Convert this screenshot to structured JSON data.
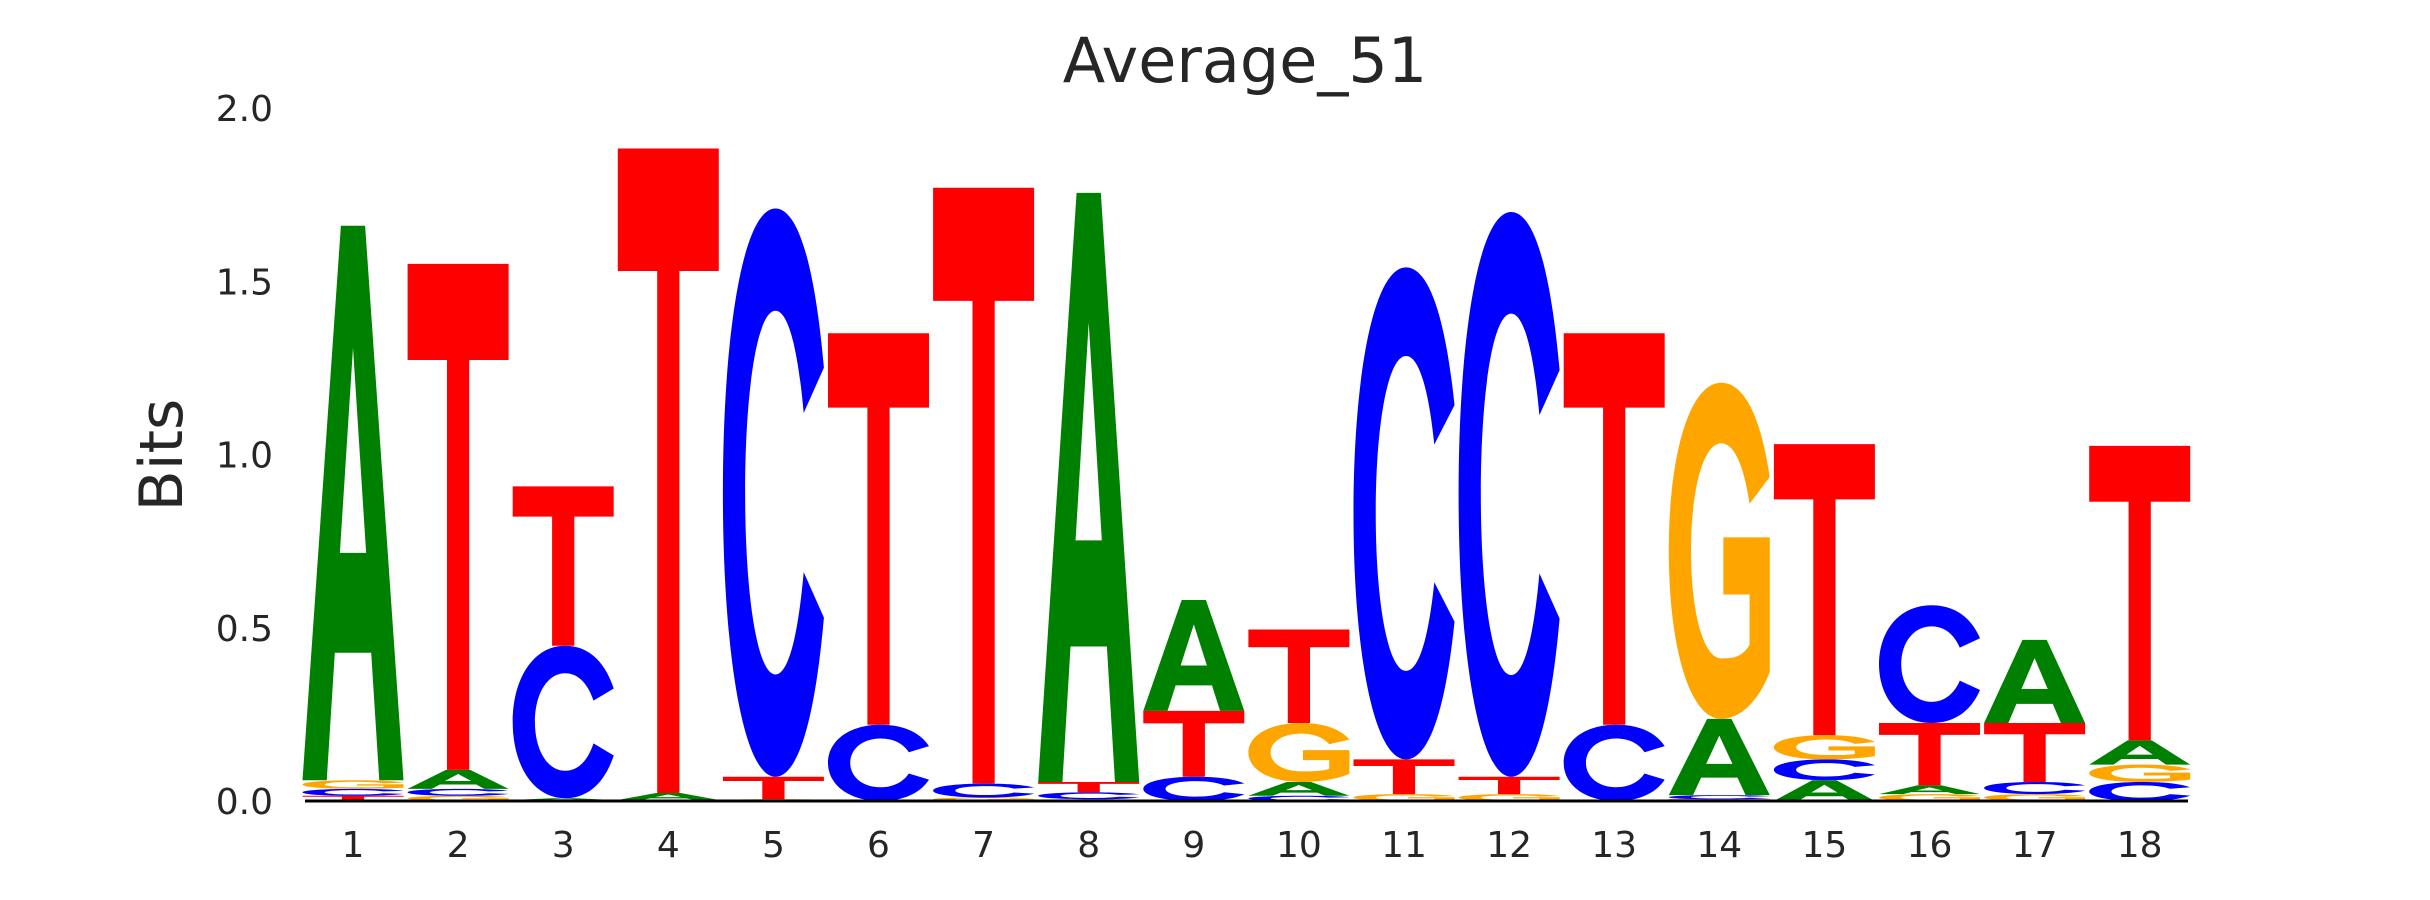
{
  "chart_data": {
    "type": "sequence-logo",
    "title": "Average_51",
    "xlabel": "",
    "ylabel": "Bits",
    "ylim": [
      0,
      2.0
    ],
    "yticks": [
      "0.0",
      "0.5",
      "1.0",
      "1.5",
      "2.0"
    ],
    "ytick_values": [
      0,
      0.5,
      1.0,
      1.5,
      2.0
    ],
    "xticks": [
      "1",
      "2",
      "3",
      "4",
      "5",
      "6",
      "7",
      "8",
      "9",
      "10",
      "11",
      "12",
      "13",
      "14",
      "15",
      "16",
      "17",
      "18"
    ],
    "grid": false,
    "colors": {
      "A": "#008000",
      "C": "#0000ff",
      "G": "#ffa500",
      "T": "#ff0000"
    },
    "columns": [
      [
        {
          "base": "T",
          "bits": 0.015
        },
        {
          "base": "C",
          "bits": 0.02
        },
        {
          "base": "G",
          "bits": 0.025
        },
        {
          "base": "A",
          "bits": 1.6
        }
      ],
      [
        {
          "base": "G",
          "bits": 0.015
        },
        {
          "base": "C",
          "bits": 0.02
        },
        {
          "base": "A",
          "bits": 0.055
        },
        {
          "base": "T",
          "bits": 1.46
        }
      ],
      [
        {
          "base": "G",
          "bits": 0.003
        },
        {
          "base": "A",
          "bits": 0.005
        },
        {
          "base": "C",
          "bits": 0.44
        },
        {
          "base": "T",
          "bits": 0.46
        }
      ],
      [
        {
          "base": "G",
          "bits": 0.003
        },
        {
          "base": "A",
          "bits": 0.02
        },
        {
          "base": "T",
          "bits": 1.86
        }
      ],
      [
        {
          "base": "G",
          "bits": 0.005
        },
        {
          "base": "T",
          "bits": 0.065
        },
        {
          "base": "C",
          "bits": 1.64
        }
      ],
      [
        {
          "base": "C",
          "bits": 0.22
        },
        {
          "base": "T",
          "bits": 1.13
        }
      ],
      [
        {
          "base": "G",
          "bits": 0.01
        },
        {
          "base": "C",
          "bits": 0.04
        },
        {
          "base": "T",
          "bits": 1.72
        }
      ],
      [
        {
          "base": "G",
          "bits": 0.005
        },
        {
          "base": "C",
          "bits": 0.02
        },
        {
          "base": "T",
          "bits": 0.03
        },
        {
          "base": "A",
          "bits": 1.7
        }
      ],
      [
        {
          "base": "C",
          "bits": 0.07
        },
        {
          "base": "T",
          "bits": 0.19
        },
        {
          "base": "A",
          "bits": 0.32
        }
      ],
      [
        {
          "base": "C",
          "bits": 0.015
        },
        {
          "base": "A",
          "bits": 0.04
        },
        {
          "base": "G",
          "bits": 0.17
        },
        {
          "base": "T",
          "bits": 0.27
        }
      ],
      [
        {
          "base": "G",
          "bits": 0.02
        },
        {
          "base": "T",
          "bits": 0.1
        },
        {
          "base": "C",
          "bits": 1.42
        }
      ],
      [
        {
          "base": "G",
          "bits": 0.02
        },
        {
          "base": "T",
          "bits": 0.05
        },
        {
          "base": "C",
          "bits": 1.63
        }
      ],
      [
        {
          "base": "C",
          "bits": 0.22
        },
        {
          "base": "T",
          "bits": 1.13
        }
      ],
      [
        {
          "base": "T",
          "bits": 0.005
        },
        {
          "base": "C",
          "bits": 0.012
        },
        {
          "base": "A",
          "bits": 0.22
        },
        {
          "base": "G",
          "bits": 0.97
        }
      ],
      [
        {
          "base": "A",
          "bits": 0.06
        },
        {
          "base": "C",
          "bits": 0.06
        },
        {
          "base": "G",
          "bits": 0.07
        },
        {
          "base": "T",
          "bits": 0.84
        }
      ],
      [
        {
          "base": "G",
          "bits": 0.02
        },
        {
          "base": "A",
          "bits": 0.025
        },
        {
          "base": "T",
          "bits": 0.18
        },
        {
          "base": "C",
          "bits": 0.34
        }
      ],
      [
        {
          "base": "G",
          "bits": 0.02
        },
        {
          "base": "C",
          "bits": 0.035
        },
        {
          "base": "T",
          "bits": 0.17
        },
        {
          "base": "A",
          "bits": 0.24
        }
      ],
      [
        {
          "base": "C",
          "bits": 0.055
        },
        {
          "base": "G",
          "bits": 0.05
        },
        {
          "base": "A",
          "bits": 0.07
        },
        {
          "base": "T",
          "bits": 0.85
        }
      ]
    ]
  }
}
